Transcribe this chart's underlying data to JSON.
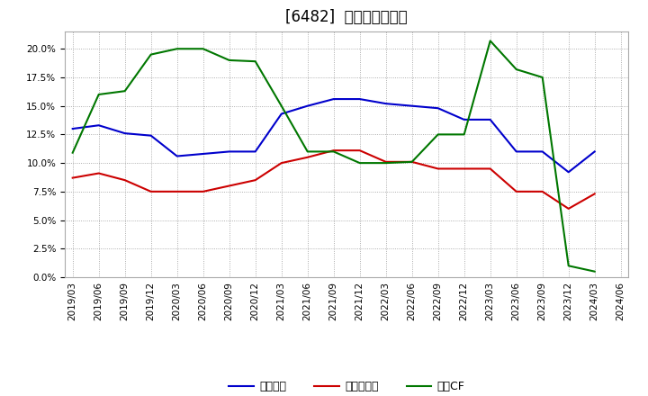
{
  "title": "[6482]  マージンの推移",
  "x_labels": [
    "2019/03",
    "2019/06",
    "2019/09",
    "2019/12",
    "2020/03",
    "2020/06",
    "2020/09",
    "2020/12",
    "2021/03",
    "2021/06",
    "2021/09",
    "2021/12",
    "2022/03",
    "2022/06",
    "2022/09",
    "2022/12",
    "2023/03",
    "2023/06",
    "2023/09",
    "2023/12",
    "2024/03",
    "2024/06"
  ],
  "series": {
    "経常利益": {
      "color": "#0000cc",
      "values": [
        0.13,
        0.133,
        0.126,
        0.124,
        0.106,
        0.108,
        0.11,
        0.11,
        0.143,
        0.15,
        0.156,
        0.156,
        0.152,
        0.15,
        0.148,
        0.138,
        0.138,
        0.11,
        0.11,
        0.092,
        0.11,
        null
      ]
    },
    "当期純利益": {
      "color": "#cc0000",
      "values": [
        0.087,
        0.091,
        0.085,
        0.075,
        0.075,
        0.075,
        0.08,
        0.085,
        0.1,
        0.105,
        0.111,
        0.111,
        0.101,
        0.101,
        0.095,
        0.095,
        0.095,
        0.075,
        0.075,
        0.06,
        0.073,
        null
      ]
    },
    "営業CF": {
      "color": "#007700",
      "values": [
        0.109,
        0.16,
        0.163,
        0.195,
        0.2,
        0.2,
        0.19,
        0.189,
        0.15,
        0.11,
        0.11,
        0.1,
        0.1,
        0.101,
        0.125,
        0.125,
        0.207,
        0.182,
        0.175,
        0.01,
        0.005,
        null
      ]
    }
  },
  "ylim": [
    0.0,
    0.215
  ],
  "yticks": [
    0.0,
    0.025,
    0.05,
    0.075,
    0.1,
    0.125,
    0.15,
    0.175,
    0.2
  ],
  "background_color": "#ffffff",
  "grid_color": "#999999",
  "title_fontsize": 12,
  "tick_fontsize": 7.5,
  "legend_fontsize": 9
}
